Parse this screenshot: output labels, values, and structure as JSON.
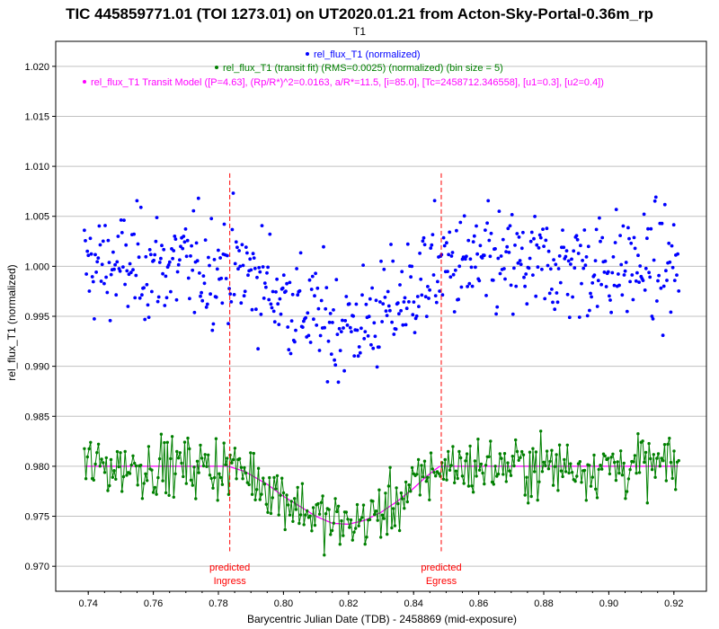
{
  "chart_data": {
    "type": "scatter",
    "title": "TIC 445859771.01 (TOI 1273.01) on UT2020.01.21 from Acton-Sky-Portal-0.36m_rp",
    "subtitle": "T1",
    "xlabel": "Barycentric Julian Date (TDB) - 2458869 (mid-exposure)",
    "ylabel": "rel_flux_T1 (normalized)",
    "xlim": [
      0.73,
      0.93
    ],
    "ylim": [
      0.9675,
      1.0225
    ],
    "xticks": [
      "0.74",
      "0.76",
      "0.78",
      "0.80",
      "0.82",
      "0.84",
      "0.86",
      "0.88",
      "0.90",
      "0.92"
    ],
    "yticks": [
      "0.970",
      "0.975",
      "0.980",
      "0.985",
      "0.990",
      "0.995",
      "1.000",
      "1.005",
      "1.010",
      "1.015",
      "1.020"
    ],
    "grid": true,
    "legend_position": "top-left",
    "colors": {
      "raw": "#0000ff",
      "binned": "#008000",
      "model": "#ff00ff",
      "markers": "#ff0000",
      "grid": "#c0c0c0"
    },
    "series": [
      {
        "name": "rel_flux_T1 (normalized)",
        "kind": "points",
        "x_start": 0.7388,
        "x_end": 0.9215,
        "count": 600,
        "baseline": 1.0,
        "scatter": 0.0045,
        "transit_depth": 0.006
      },
      {
        "name": "rel_flux_T1 (transit fit) (RMS=0.0025) (normalized) (bin size = 5)",
        "kind": "line-points",
        "x_start": 0.7388,
        "x_end": 0.9215,
        "count": 380,
        "baseline": 0.98,
        "scatter": 0.0025
      },
      {
        "name": "rel_flux_T1 Transit Model ([P=4.63], (Rp/R*)^2=0.0163, a/R*=11.5, [i=85.0], [Tc=2458712.346558], [u1=0.3], [u2=0.4])",
        "kind": "model",
        "x": [
          0.7388,
          0.783,
          0.788,
          0.795,
          0.8,
          0.805,
          0.81,
          0.815,
          0.82,
          0.825,
          0.83,
          0.835,
          0.84,
          0.844,
          0.848,
          0.9215
        ],
        "y": [
          0.98,
          0.98,
          0.9795,
          0.9782,
          0.977,
          0.976,
          0.975,
          0.9743,
          0.9742,
          0.9746,
          0.9754,
          0.9765,
          0.9778,
          0.979,
          0.98,
          0.98
        ]
      }
    ],
    "annotations": [
      {
        "x": 0.7835,
        "line1": "predicted",
        "line2": "Ingress"
      },
      {
        "x": 0.8485,
        "line1": "predicted",
        "line2": "Egress"
      }
    ]
  }
}
